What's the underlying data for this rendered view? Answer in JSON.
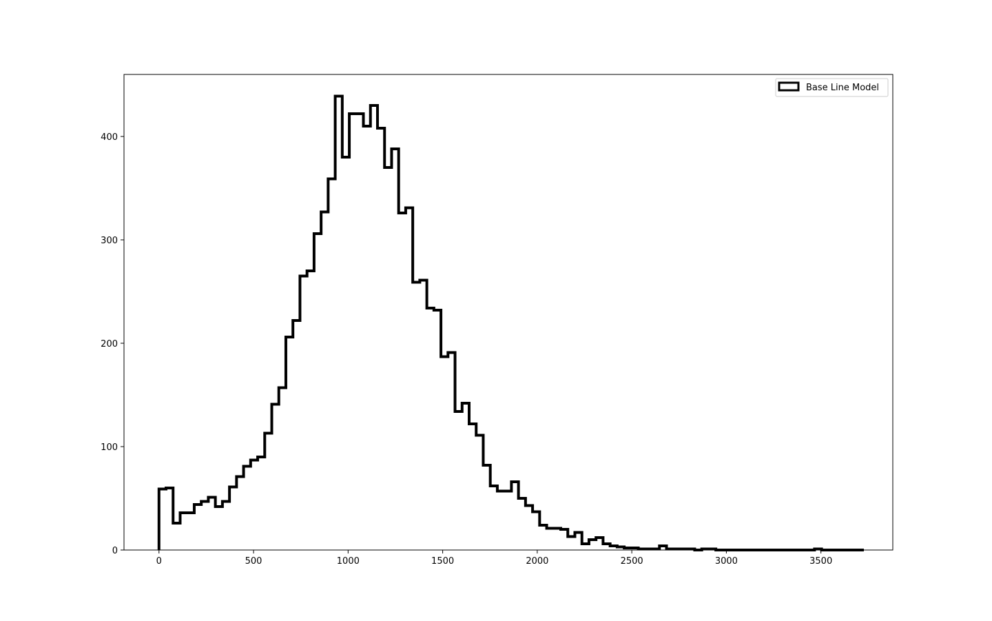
{
  "chart_data": {
    "type": "histogram",
    "histtype": "step",
    "title": "",
    "xlabel": "",
    "ylabel": "",
    "xlim": [
      -185,
      3880
    ],
    "ylim": [
      0,
      460
    ],
    "xticks": [
      0,
      500,
      1000,
      1500,
      2000,
      2500,
      3000,
      3500
    ],
    "yticks": [
      0,
      100,
      200,
      300,
      400
    ],
    "grid": false,
    "legend": {
      "placement": "upper right",
      "entries": [
        "Base Line Model"
      ]
    },
    "series": [
      {
        "name": "Base Line Model",
        "color": "#000000",
        "bin_start": 0,
        "bin_width": 37.27,
        "counts": [
          59,
          60,
          26,
          36,
          36,
          44,
          47,
          51,
          42,
          47,
          61,
          71,
          81,
          87,
          90,
          113,
          141,
          157,
          206,
          222,
          265,
          270,
          306,
          327,
          359,
          439,
          380,
          422,
          422,
          410,
          430,
          408,
          370,
          388,
          326,
          331,
          259,
          261,
          234,
          232,
          187,
          191,
          134,
          142,
          122,
          111,
          82,
          62,
          57,
          57,
          66,
          50,
          43,
          37,
          24,
          21,
          21,
          20,
          13,
          17,
          6,
          10,
          12,
          6,
          4,
          3,
          2,
          2,
          1,
          1,
          1,
          4,
          1,
          1,
          1,
          1,
          0,
          1,
          1,
          0,
          0,
          0,
          0,
          0,
          0,
          0,
          0,
          0,
          0,
          0,
          0,
          0,
          0,
          1,
          0,
          0,
          0,
          0,
          0,
          0
        ]
      }
    ]
  }
}
